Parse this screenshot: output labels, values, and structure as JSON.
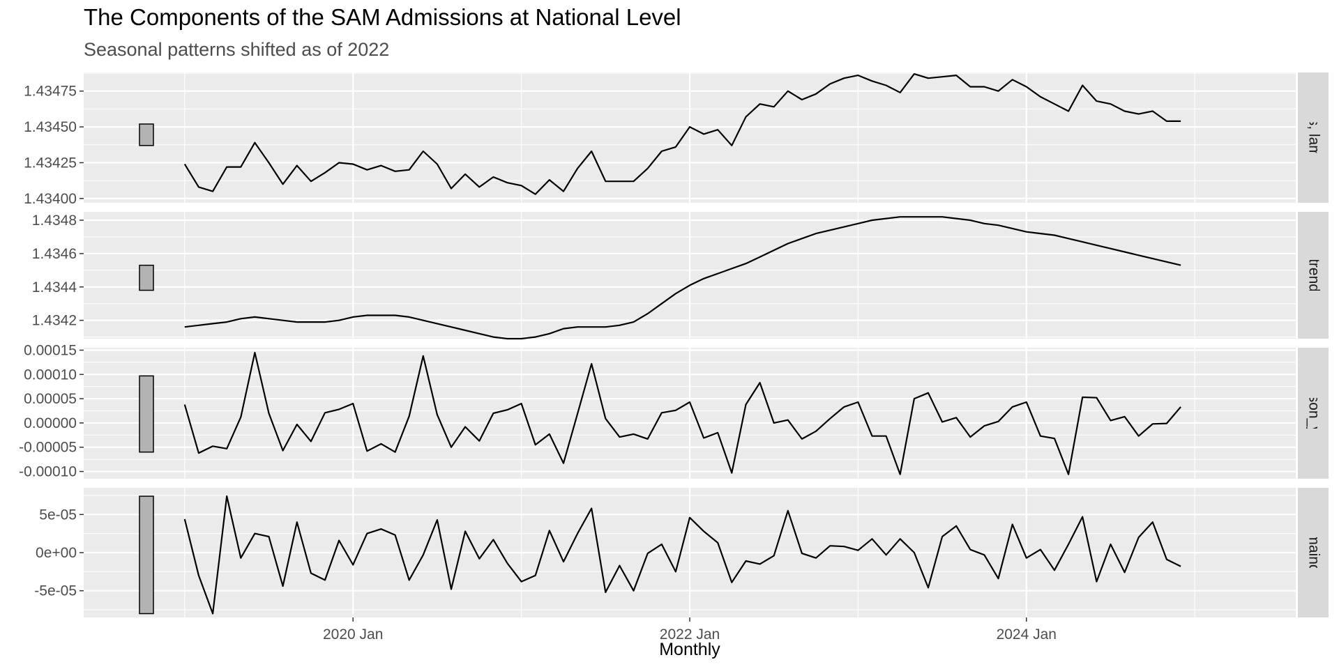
{
  "title": "The Components of the SAM Admissions at National Level",
  "subtitle": "Seasonal patterns shifted as of 2022",
  "chart_data": {
    "type": "line",
    "xlabel": "Monthly",
    "x_start": "2019 Jan",
    "x_end": "2024 Dec",
    "x_ticks": [
      {
        "label": "2020 Jan",
        "month_index": 12
      },
      {
        "label": "2022 Jan",
        "month_index": 36
      },
      {
        "label": "2024 Jan",
        "month_index": 60
      }
    ],
    "grid": true,
    "panels": [
      {
        "name": "Admissions, lambda =",
        "strip_label": "issions, lambda =",
        "ylim": [
          1.43397,
          1.43488
        ],
        "yticks": [
          1.434,
          1.43425,
          1.4345,
          1.43475
        ],
        "ytick_labels": [
          "1.43400",
          "1.43425",
          "1.43450",
          "1.43475"
        ],
        "scale_bar": [
          1.43437,
          1.43452
        ],
        "values": [
          1.43424,
          1.43408,
          1.43405,
          1.43422,
          1.43422,
          1.43439,
          1.43425,
          1.4341,
          1.43423,
          1.43412,
          1.43418,
          1.43425,
          1.43424,
          1.4342,
          1.43423,
          1.43419,
          1.4342,
          1.43433,
          1.43424,
          1.43407,
          1.43417,
          1.43408,
          1.43415,
          1.43411,
          1.43409,
          1.43403,
          1.43413,
          1.43405,
          1.43421,
          1.43433,
          1.43412,
          1.43412,
          1.43412,
          1.43421,
          1.43433,
          1.43436,
          1.4345,
          1.43445,
          1.43448,
          1.43437,
          1.43457,
          1.43466,
          1.43464,
          1.43475,
          1.43469,
          1.43473,
          1.4348,
          1.43484,
          1.43486,
          1.43482,
          1.43479,
          1.43474,
          1.43487,
          1.43484,
          1.43485,
          1.43486,
          1.43478,
          1.43478,
          1.43475,
          1.43483,
          1.43478,
          1.43471,
          1.43466,
          1.43461,
          1.43479,
          1.43468,
          1.43466,
          1.43461,
          1.43459,
          1.43461,
          1.43454,
          1.43454
        ]
      },
      {
        "name": "trend",
        "strip_label": "trend",
        "ylim": [
          1.43409,
          1.43485
        ],
        "yticks": [
          1.4342,
          1.4344,
          1.4346,
          1.4348
        ],
        "ytick_labels": [
          "1.4342",
          "1.4344",
          "1.4346",
          "1.4348"
        ],
        "scale_bar": [
          1.43438,
          1.43453
        ],
        "values": [
          1.43416,
          1.43417,
          1.43418,
          1.43419,
          1.43421,
          1.43422,
          1.43421,
          1.4342,
          1.43419,
          1.43419,
          1.43419,
          1.4342,
          1.43422,
          1.43423,
          1.43423,
          1.43423,
          1.43422,
          1.4342,
          1.43418,
          1.43416,
          1.43414,
          1.43412,
          1.4341,
          1.43409,
          1.43409,
          1.4341,
          1.43412,
          1.43415,
          1.43416,
          1.43416,
          1.43416,
          1.43417,
          1.43419,
          1.43424,
          1.4343,
          1.43436,
          1.43441,
          1.43445,
          1.43448,
          1.43451,
          1.43454,
          1.43458,
          1.43462,
          1.43466,
          1.43469,
          1.43472,
          1.43474,
          1.43476,
          1.43478,
          1.4348,
          1.43481,
          1.43482,
          1.43482,
          1.43482,
          1.43482,
          1.43481,
          1.4348,
          1.43478,
          1.43477,
          1.43475,
          1.43473,
          1.43472,
          1.43471,
          1.43469,
          1.43467,
          1.43465,
          1.43463,
          1.43461,
          1.43459,
          1.43457,
          1.43455,
          1.43453
        ]
      },
      {
        "name": "season_year",
        "strip_label": "season_year",
        "ylim": [
          -0.000115,
          0.000155
        ],
        "yticks": [
          -0.0001,
          -5e-05,
          0,
          5e-05,
          0.0001,
          0.00015
        ],
        "ytick_labels": [
          "-0.00010",
          "-0.00005",
          "0.00000",
          "0.00005",
          "0.00010",
          "0.00015"
        ],
        "scale_bar": [
          -6e-05,
          9.7e-05
        ],
        "values": [
          3.8e-05,
          -6.2e-05,
          -4.8e-05,
          -5.3e-05,
          1.2e-05,
          0.000145,
          2e-05,
          -5.7e-05,
          -3e-06,
          -3.8e-05,
          2.1e-05,
          2.8e-05,
          4e-05,
          -5.8e-05,
          -4.3e-05,
          -6e-05,
          1.4e-05,
          0.000138,
          1.7e-05,
          -5e-05,
          -8e-06,
          -3.7e-05,
          2e-05,
          2.7e-05,
          4e-05,
          -4.5e-05,
          -2.3e-05,
          -8.3e-05,
          1.9e-05,
          0.000122,
          9e-06,
          -2.9e-05,
          -2.3e-05,
          -3.3e-05,
          2.1e-05,
          2.6e-05,
          4.3e-05,
          -3.1e-05,
          -2e-05,
          -0.000103,
          3.8e-05,
          8.3e-05,
          0.0,
          6e-06,
          -3.3e-05,
          -1.7e-05,
          9e-06,
          3.3e-05,
          4.3e-05,
          -2.7e-05,
          -2.7e-05,
          -0.000106,
          5e-05,
          6.2e-05,
          2e-06,
          1.1e-05,
          -2.9e-05,
          -6e-06,
          3e-06,
          3.3e-05,
          4.3e-05,
          -2.7e-05,
          -3.2e-05,
          -0.000106,
          5.3e-05,
          5.2e-05,
          5e-06,
          1.3e-05,
          -2.7e-05,
          -2e-06,
          -1e-06,
          3.3e-05
        ]
      },
      {
        "name": "remainder",
        "strip_label": "remainder",
        "ylim": [
          -8.5e-05,
          8.5e-05
        ],
        "yticks": [
          -5e-05,
          0,
          5e-05
        ],
        "ytick_labels": [
          "-5e-05",
          "0e+00",
          "5e-05"
        ],
        "scale_bar": [
          -8e-05,
          7.4e-05
        ],
        "values": [
          4.4e-05,
          -3e-05,
          -8e-05,
          7.4e-05,
          -7e-06,
          2.5e-05,
          2.1e-05,
          -4.4e-05,
          4e-05,
          -2.7e-05,
          -3.6e-05,
          1.6e-05,
          -1.6e-05,
          2.5e-05,
          3.1e-05,
          2.3e-05,
          -3.6e-05,
          -3e-06,
          4.3e-05,
          -4.8e-05,
          2.8e-05,
          -8e-06,
          1.7e-05,
          -1.4e-05,
          -3.8e-05,
          -3e-05,
          2.9e-05,
          -1.2e-05,
          2.5e-05,
          5.8e-05,
          -5.2e-05,
          -1.7e-05,
          -5e-05,
          -1e-06,
          1.1e-05,
          -2.5e-05,
          4.6e-05,
          2.8e-05,
          1.3e-05,
          -3.9e-05,
          -1.1e-05,
          -1.5e-05,
          -4e-06,
          5.5e-05,
          -1e-06,
          -7e-06,
          9e-06,
          8e-06,
          3e-06,
          1.8e-05,
          -3e-06,
          1.8e-05,
          0.0,
          -4.6e-05,
          2.1e-05,
          3.5e-05,
          4e-06,
          -3e-06,
          -3.4e-05,
          3.7e-05,
          -7e-06,
          4e-06,
          -2.3e-05,
          1.1e-05,
          4.7e-05,
          -3.8e-05,
          1.1e-05,
          -2.6e-05,
          2e-05,
          4e-05,
          -9e-06,
          -1.8e-05
        ]
      }
    ]
  }
}
